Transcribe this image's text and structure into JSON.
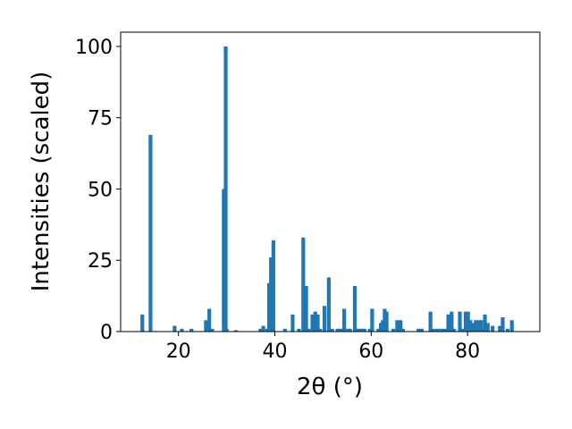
{
  "chart_data": {
    "type": "bar",
    "title": "",
    "xlabel": "2θ (°)",
    "ylabel": "Intensities (scaled)",
    "xlim": [
      8,
      95
    ],
    "ylim": [
      0,
      105
    ],
    "xticks": [
      20,
      40,
      60,
      80
    ],
    "yticks": [
      0,
      25,
      50,
      75,
      100
    ],
    "grid": false,
    "bar_color": "#1f77b4",
    "series": [
      {
        "x": [
          12.5,
          14.2,
          19.2,
          20.7,
          22.7,
          25.7,
          26.4,
          27.0,
          29.4,
          29.8,
          30.0,
          31.9,
          37.0,
          37.6,
          38.4,
          38.8,
          39.2,
          39.7,
          42.1,
          43.7,
          45.0,
          45.9,
          46.5,
          47.0,
          47.8,
          48.4,
          48.9,
          49.4,
          50.3,
          51.2,
          51.9,
          53.0,
          53.7,
          54.4,
          55.2,
          55.6,
          56.6,
          57.3,
          57.9,
          58.6,
          59.7,
          60.2,
          61.5,
          62.0,
          62.4,
          62.8,
          63.2,
          64.6,
          65.4,
          66.1,
          66.6,
          69.8,
          70.5,
          72.3,
          73.0,
          73.8,
          74.6,
          75.3,
          76.0,
          76.7,
          77.2,
          78.4,
          79.0,
          79.6,
          80.1,
          80.6,
          81.1,
          81.7,
          82.3,
          82.8,
          83.2,
          83.6,
          84.2,
          85.2,
          86.7,
          87.3,
          88.3,
          89.2
        ],
        "values": [
          6,
          69,
          2,
          1,
          1,
          4,
          8,
          1,
          50,
          100,
          1,
          0.5,
          1,
          2,
          1,
          17,
          26,
          32,
          1,
          6,
          1,
          33,
          16,
          1,
          6,
          7,
          6,
          1,
          9,
          19,
          1,
          1,
          1,
          8,
          1,
          1,
          16,
          1,
          1,
          1,
          1,
          8,
          1,
          3,
          4,
          8,
          7,
          1,
          4,
          4,
          1,
          1,
          1,
          7,
          1,
          1,
          1,
          1,
          6,
          7,
          1,
          7,
          1,
          7,
          7,
          4,
          3,
          4,
          4,
          4,
          1,
          6,
          3,
          2,
          2,
          5,
          1,
          4
        ]
      }
    ]
  }
}
